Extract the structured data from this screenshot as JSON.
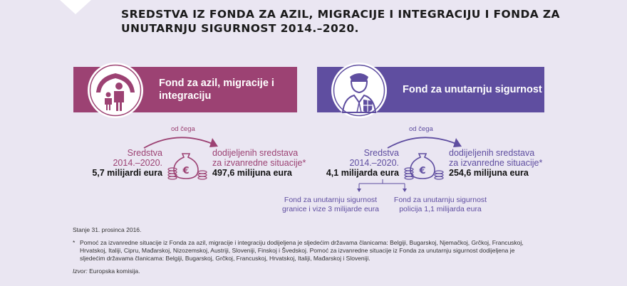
{
  "title": "SREDSTVA IZ FONDA ZA AZIL, MIGRACIJE I INTEGRACIJU I FONDA ZA UNUTARNJU SIGURNOST 2014.–2020.",
  "colors": {
    "amif": "#9c4273",
    "isf": "#5f4ea0",
    "background": "#eae6f2"
  },
  "amif": {
    "label": "Fond za azil, migracije i integraciju",
    "icon": "family-protection-icon",
    "of_which": "od čega",
    "funds_line1": "Sredstva",
    "funds_line2": "2014.–2020.",
    "funds_total": "5,7 milijardi eura",
    "emergency_line1": "dodijeljenih sredstava",
    "emergency_line2": "za izvanredne situacije*",
    "emergency_total": "497,6 milijuna eura"
  },
  "isf": {
    "label": "Fond za unutarnju sigurnost",
    "icon": "police-officer-icon",
    "of_which": "od čega",
    "funds_line1": "Sredstva",
    "funds_line2": "2014.–2020.",
    "funds_total": "4,1 milijarda eura",
    "emergency_line1": "dodijeljenih sredstava",
    "emergency_line2": "za izvanredne situacije*",
    "emergency_total": "254,6 milijuna eura",
    "sub_borders_line1": "Fond za unutarnju sigurnost",
    "sub_borders_line2": "granice i vize 3 milijarde eura",
    "sub_police_line1": "Fond za unutarnju sigurnost",
    "sub_police_line2": "policija 1,1 milijarda eura"
  },
  "notes": {
    "date": "Stanje 31. prosinca 2016.",
    "footnote_mark": "*",
    "footnote": "Pomoć za izvanredne situacije iz Fonda za azil, migracije i integraciju dodijeljena je sljedećim državama članicama: Belgiji, Bugarskoj, Njemačkoj, Grčkoj, Francuskoj, Hrvatskoj, Italiji, Cipru, Mađarskoj, Nizozemskoj, Austriji, Sloveniji, Finskoj i Švedskoj. Pomoć za izvanredne situacije iz Fonda za unutarnju sigurnost dodijeljena je sljedećim državama članicama: Belgiji, Bugarskoj, Grčkoj, Francuskoj, Hrvatskoj, Italiji, Mađarskoj i Sloveniji.",
    "source_label": "Izvor:",
    "source_value": " Europska komisija."
  }
}
